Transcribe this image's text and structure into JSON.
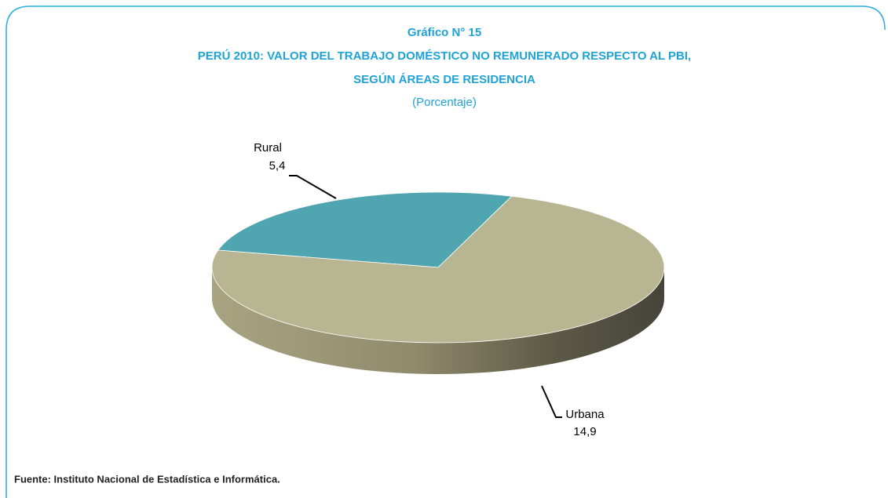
{
  "chart_data": {
    "type": "pie3d",
    "title": [
      "Gráfico N° 15",
      "PERÚ 2010: VALOR DEL TRABAJO DOMÉSTICO NO REMUNERADO RESPECTO AL PBI,",
      "SEGÚN ÁREAS DE RESIDENCIA"
    ],
    "subtitle": "(Porcentaje)",
    "categories": [
      "Rural",
      "Urbana"
    ],
    "values": [
      5.4,
      14.9
    ],
    "value_labels": [
      "5,4",
      "14,9"
    ],
    "colors": [
      "#4fa6b0",
      "#b8b592"
    ],
    "source": "Fuente: Instituto Nacional de Estadística e Informática."
  }
}
